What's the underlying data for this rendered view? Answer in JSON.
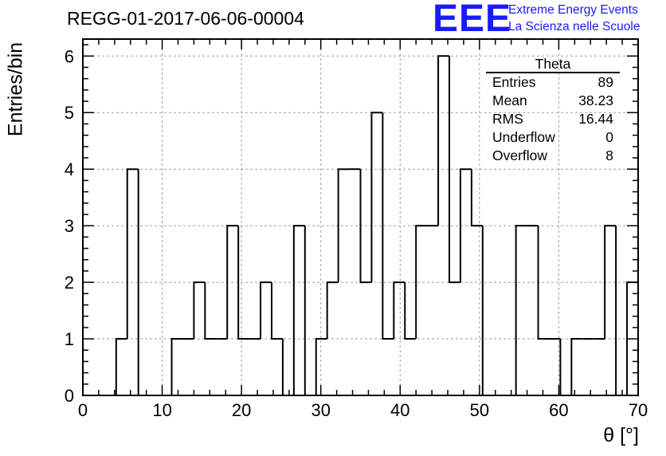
{
  "header": {
    "title": "REGG-01-2017-06-06-00004",
    "logo_text": "EEE",
    "logo_line1": "Extreme Energy Events",
    "logo_line2": "La Scienza nelle Scuole"
  },
  "stats": {
    "title": "Theta",
    "rows": [
      {
        "label": "Entries",
        "value": "89"
      },
      {
        "label": "Mean",
        "value": "38.23"
      },
      {
        "label": "RMS",
        "value": "16.44"
      },
      {
        "label": "Underflow",
        "value": "0"
      },
      {
        "label": "Overflow",
        "value": "8"
      }
    ]
  },
  "colors": {
    "logo": "#1a1aff",
    "line": "#000000",
    "grid": "#a0a0a0"
  },
  "chart_data": {
    "type": "histogram",
    "xlabel": "θ [°]",
    "ylabel": "Entries/bin",
    "xlim": [
      0,
      70
    ],
    "ylim": [
      0,
      6.3
    ],
    "grid": true,
    "x_ticks": [
      0,
      10,
      20,
      30,
      40,
      50,
      60,
      70
    ],
    "y_ticks": [
      0,
      1,
      2,
      3,
      4,
      5,
      6
    ],
    "bin_edges": [
      0,
      1.4,
      2.8,
      4.2,
      5.6,
      7.0,
      8.4,
      9.8,
      11.2,
      12.6,
      14.0,
      15.4,
      16.8,
      18.2,
      19.6,
      21.0,
      22.4,
      23.8,
      25.2,
      26.6,
      28.0,
      29.4,
      30.8,
      32.2,
      33.6,
      35.0,
      36.4,
      37.8,
      39.2,
      40.6,
      42.0,
      43.4,
      44.8,
      46.2,
      47.6,
      49.0,
      50.4,
      51.8,
      53.2,
      54.6,
      56.0,
      57.4,
      58.8,
      60.2,
      61.6,
      63.0,
      64.4,
      65.8,
      67.2,
      68.6,
      70.0
    ],
    "counts": [
      0,
      0,
      0,
      1,
      4,
      0,
      0,
      0,
      1,
      1,
      2,
      1,
      1,
      3,
      1,
      1,
      2,
      1,
      0,
      3,
      0,
      1,
      2,
      4,
      4,
      2,
      5,
      1,
      2,
      1,
      3,
      3,
      6,
      2,
      4,
      3,
      0,
      0,
      0,
      3,
      3,
      1,
      1,
      0,
      1,
      1,
      1,
      3,
      0,
      2
    ]
  }
}
